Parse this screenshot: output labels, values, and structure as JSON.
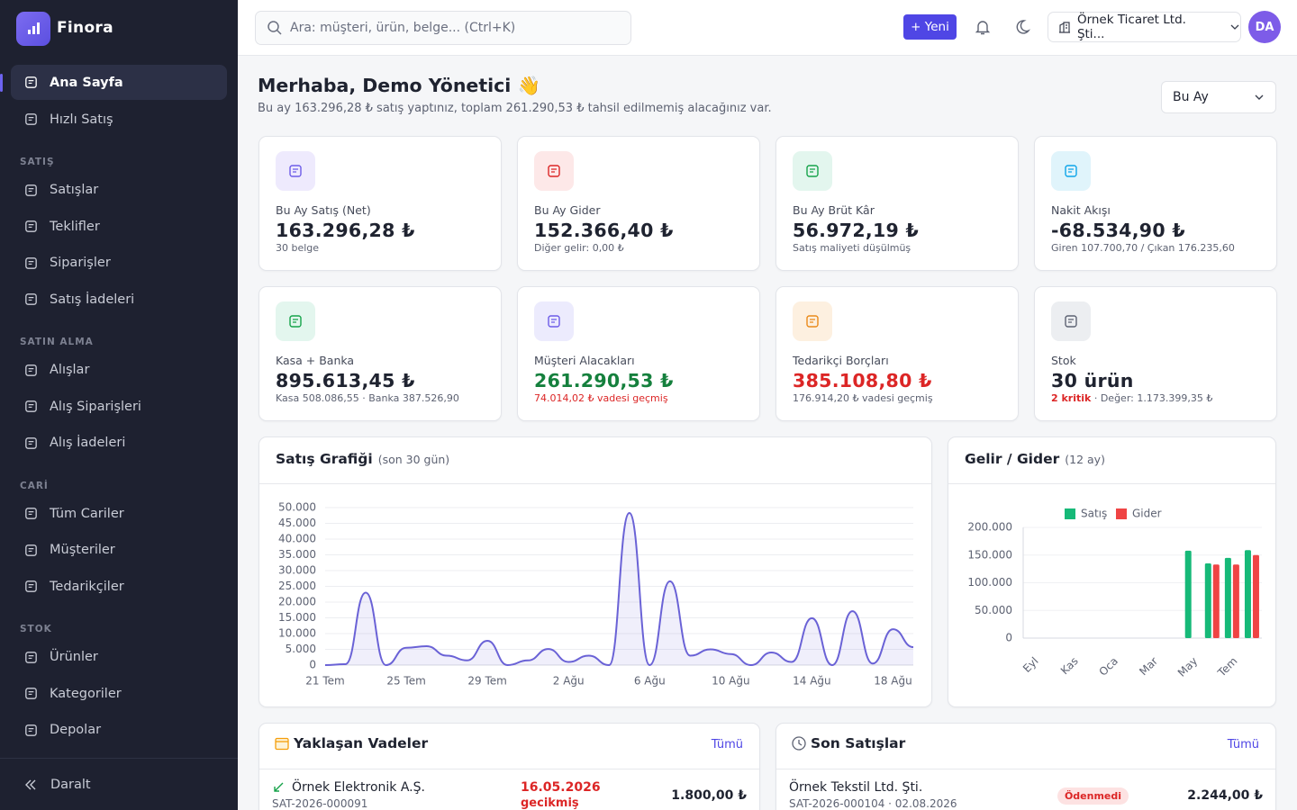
{
  "brand": "Finora",
  "sidebar": {
    "groups": [
      {
        "items": [
          "Ana Sayfa",
          "Hızlı Satış"
        ]
      },
      {
        "title": "SATIŞ",
        "items": [
          "Satışlar",
          "Teklifler",
          "Siparişler",
          "Satış İadeleri"
        ]
      },
      {
        "title": "SATIN ALMA",
        "items": [
          "Alışlar",
          "Alış Siparişleri",
          "Alış İadeleri"
        ]
      },
      {
        "title": "CARİ",
        "items": [
          "Tüm Cariler",
          "Müşteriler",
          "Tedarikçiler"
        ]
      },
      {
        "title": "STOK",
        "items": [
          "Ürünler",
          "Kategoriler",
          "Depolar"
        ]
      }
    ],
    "collapse": "Daralt"
  },
  "header": {
    "search": "Ara: müşteri, ürün, belge...  (Ctrl+K)",
    "new_button": "+ Yeni",
    "company": "Örnek Ticaret Ltd. Şti...",
    "avatar": "DA"
  },
  "greeting": {
    "title": "Merhaba, Demo Yönetici 👋",
    "subtitle": "Bu ay 163.296,28 ₺ satış yaptınız, toplam 261.290,53 ₺ tahsil edilmemiş alacağınız var.",
    "period": "Bu Ay"
  },
  "kpis": [
    {
      "label": "Bu Ay Satış (Net)",
      "value": "163.296,28 ₺",
      "note": "30 belge"
    },
    {
      "label": "Bu Ay Gider",
      "value": "152.366,40 ₺",
      "note": "Diğer gelir: 0,00 ₺"
    },
    {
      "label": "Bu Ay Brüt Kâr",
      "value": "56.972,19 ₺",
      "note": "Satış maliyeti düşülmüş"
    },
    {
      "label": "Nakit Akışı",
      "value": "-68.534,90 ₺",
      "note": "Giren 107.700,70 / Çıkan 176.235,60"
    },
    {
      "label": "Kasa + Banka",
      "value": "895.613,45 ₺",
      "note": "Kasa 508.086,55 · Banka 387.526,90"
    },
    {
      "label": "Müşteri Alacakları",
      "value": "261.290,53 ₺",
      "note": "74.014,02 ₺ vadesi geçmiş"
    },
    {
      "label": "Tedarikçi Borçları",
      "value": "385.108,80 ₺",
      "note": "176.914,20 ₺ vadesi geçmiş"
    },
    {
      "label": "Stok",
      "value": "30 ürün",
      "note_highlight": "2 kritik",
      "note": " · Değer: 1.173.399,35 ₺"
    }
  ],
  "chart_data": [
    {
      "type": "line",
      "title": "Satış Grafiği",
      "subtitle": "(son 30 gün)",
      "categories": [
        "21 Tem",
        null,
        null,
        null,
        "25 Tem",
        null,
        null,
        null,
        "29 Tem",
        null,
        null,
        null,
        "2 Ağu",
        null,
        null,
        null,
        "6 Ağu",
        null,
        null,
        null,
        "10 Ağu",
        null,
        null,
        null,
        "14 Ağu",
        null,
        null,
        null,
        "18 Ağu",
        null
      ],
      "values": [
        0,
        300,
        23000,
        0,
        5500,
        6000,
        3000,
        1500,
        7700,
        0,
        1500,
        5100,
        1000,
        3000,
        0,
        48300,
        0,
        26600,
        3000,
        5000,
        3500,
        0,
        4000,
        1000,
        14900,
        0,
        17100,
        500,
        11400,
        5700
      ],
      "color": "#6a62d6",
      "ylim": [
        0,
        50000
      ],
      "yticks": [
        0,
        {
          "value": 5000,
          "label": "5.000"
        },
        {
          "value": 10000,
          "label": "10.000"
        },
        {
          "value": 15000,
          "label": "15.000"
        },
        {
          "value": 20000,
          "label": "20.000"
        },
        {
          "value": 25000,
          "label": "25.000"
        },
        {
          "value": 30000,
          "label": "30.000"
        },
        {
          "value": 35000,
          "label": "35.000"
        },
        {
          "value": 40000,
          "label": "40.000"
        },
        {
          "value": 45000,
          "label": "45.000"
        },
        {
          "value": 50000,
          "label": "50.000"
        }
      ],
      "grid": true
    },
    {
      "type": "bar",
      "title": "Gelir / Gider",
      "subtitle": "(12 ay)",
      "categories": [
        "Eyl",
        null,
        "Kas",
        null,
        "Oca",
        null,
        "Mar",
        null,
        "May",
        null,
        "Tem",
        null
      ],
      "series": [
        {
          "name": "Satış",
          "color": "#16b978",
          "values": [
            0,
            0,
            0,
            0,
            0,
            0,
            0,
            0,
            158000,
            135000,
            145000,
            159000
          ]
        },
        {
          "name": "Gider",
          "color": "#ef4444",
          "values": [
            0,
            0,
            0,
            0,
            0,
            0,
            0,
            0,
            0,
            133000,
            133000,
            150000
          ]
        }
      ],
      "ylim": [
        0,
        200000
      ],
      "yticks": [
        0,
        {
          "value": 50000,
          "label": "50.000"
        },
        {
          "value": 100000,
          "label": "100.000"
        },
        {
          "value": 150000,
          "label": "150.000"
        },
        {
          "value": 200000,
          "label": "200.000"
        }
      ],
      "grid": true,
      "legend": "top"
    }
  ],
  "upcoming": {
    "title": "Yaklaşan Vadeler",
    "link": "Tümü",
    "rows": [
      {
        "name": "Örnek Elektronik A.Ş.",
        "code": "SAT-2026-000091",
        "date": "16.05.2026",
        "status": "gecikmiş",
        "amount": "1.800,00 ₺"
      }
    ]
  },
  "recent": {
    "title": "Son Satışlar",
    "link": "Tümü",
    "rows": [
      {
        "name": "Örnek Tekstil Ltd. Şti.",
        "meta": "SAT-2026-000104 · 02.08.2026",
        "badge": "Ödenmedi",
        "amount": "2.244,00 ₺"
      }
    ]
  }
}
